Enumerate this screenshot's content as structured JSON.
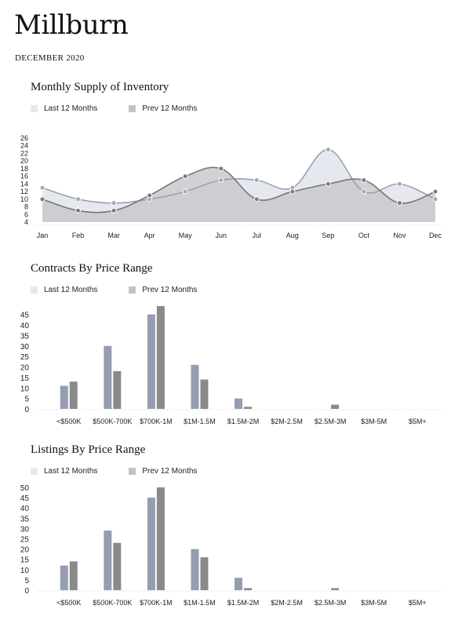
{
  "header": {
    "title": "Millburn",
    "date": "DECEMBER 2020"
  },
  "legend": {
    "last": "Last 12 Months",
    "prev": "Prev 12 Months"
  },
  "colors": {
    "last_fill": "#e6e8ef",
    "last_line": "#9aa0b4",
    "prev_fill": "#c9c9cc",
    "prev_line": "#777777",
    "bar_last": "#959db2",
    "bar_prev": "#8a8a8a"
  },
  "chart_data": [
    {
      "type": "area",
      "title": "Monthly Supply of Inventory",
      "categories": [
        "Jan",
        "Feb",
        "Mar",
        "Apr",
        "May",
        "Jun",
        "Jul",
        "Aug",
        "Sep",
        "Oct",
        "Nov",
        "Dec"
      ],
      "yticks": [
        4,
        6,
        8,
        10,
        12,
        14,
        16,
        18,
        20,
        22,
        24,
        26
      ],
      "ylim": [
        4,
        26
      ],
      "series": [
        {
          "name": "Last 12 Months",
          "values": [
            13,
            10,
            9,
            10,
            12,
            15,
            15,
            13,
            23,
            12,
            14,
            10
          ]
        },
        {
          "name": "Prev 12 Months",
          "values": [
            10,
            7,
            7,
            11,
            16,
            18,
            10,
            12,
            14,
            15,
            9,
            12
          ]
        }
      ]
    },
    {
      "type": "bar",
      "title": "Contracts By Price Range",
      "categories": [
        "<$500K",
        "$500K-700K",
        "$700K-1M",
        "$1M-1.5M",
        "$1.5M-2M",
        "$2M-2.5M",
        "$2.5M-3M",
        "$3M-5M",
        "$5M+"
      ],
      "yticks": [
        0,
        5,
        10,
        15,
        20,
        25,
        30,
        35,
        40,
        45
      ],
      "ylim": [
        0,
        49
      ],
      "series": [
        {
          "name": "Last 12 Months",
          "values": [
            11,
            30,
            45,
            21,
            5,
            0,
            0,
            0,
            0
          ]
        },
        {
          "name": "Prev 12 Months",
          "values": [
            13,
            18,
            49,
            14,
            1,
            0,
            2,
            0,
            0
          ]
        }
      ]
    },
    {
      "type": "bar",
      "title": "Listings By Price Range",
      "categories": [
        "<$500K",
        "$500K-700K",
        "$700K-1M",
        "$1M-1.5M",
        "$1.5M-2M",
        "$2M-2.5M",
        "$2.5M-3M",
        "$3M-5M",
        "$5M+"
      ],
      "yticks": [
        0,
        5,
        10,
        15,
        20,
        25,
        30,
        35,
        40,
        45,
        50
      ],
      "ylim": [
        0,
        50
      ],
      "series": [
        {
          "name": "Last 12 Months",
          "values": [
            12,
            29,
            45,
            20,
            6,
            0,
            0,
            0,
            0
          ]
        },
        {
          "name": "Prev 12 Months",
          "values": [
            14,
            23,
            50,
            16,
            1,
            0,
            1,
            0,
            0
          ]
        }
      ]
    }
  ]
}
